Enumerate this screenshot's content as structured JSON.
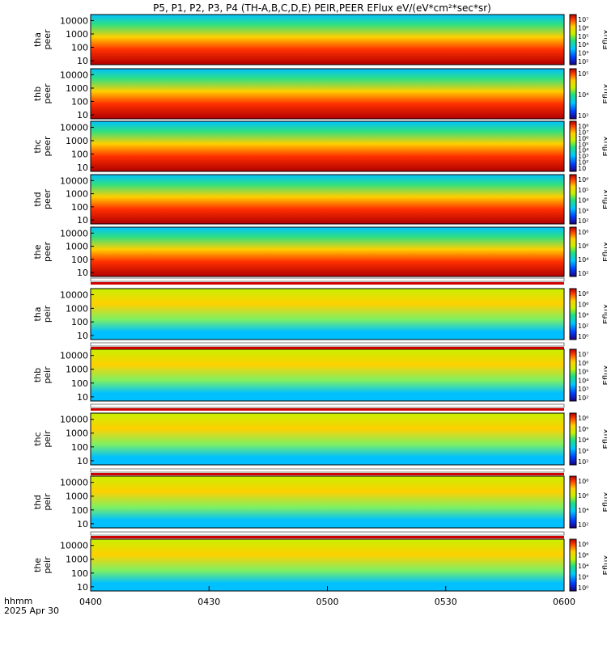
{
  "title": "P5, P1, P2, P3, P4 (TH-A,B,C,D,E) PEIR,PEER EFlux eV/(eV*cm²*sec*sr)",
  "colorbar_label": "Eflux",
  "time_axis": {
    "label_line1": "hhmm",
    "label_line2": "2025 Apr 30",
    "ticks": [
      "0400",
      "0430",
      "0500",
      "0530",
      "0600"
    ]
  },
  "chart_data": {
    "type": "heatmap",
    "x_range": [
      "0400",
      "0600"
    ],
    "panels": [
      {
        "name": "tha peer",
        "y_ticks": [
          "10000",
          "1000",
          "100",
          "10"
        ],
        "cbar_ticks": [
          "10⁷",
          "10⁶",
          "10⁵",
          "10⁴",
          "10³",
          "10²"
        ]
      },
      {
        "name": "thb peer",
        "y_ticks": [
          "10000",
          "1000",
          "100",
          "10"
        ],
        "cbar_ticks": [
          "10⁵",
          "10⁴",
          "10²"
        ]
      },
      {
        "name": "thc peer",
        "y_ticks": [
          "10000",
          "1000",
          "100",
          "10"
        ],
        "cbar_ticks": [
          "10⁸",
          "10⁷",
          "10⁶",
          "10⁵",
          "10⁴",
          "10³",
          "10²",
          "10"
        ]
      },
      {
        "name": "thd peer",
        "y_ticks": [
          "10000",
          "1000",
          "100",
          "10"
        ],
        "cbar_ticks": [
          "10⁶",
          "10⁵",
          "10⁴",
          "10³",
          "10²"
        ]
      },
      {
        "name": "the peer",
        "y_ticks": [
          "10000",
          "1000",
          "100",
          "10"
        ],
        "cbar_ticks": [
          "10⁸",
          "10⁶",
          "10⁴",
          "10²"
        ]
      },
      {
        "name": "tha peir",
        "y_ticks": [
          "10000",
          "1000",
          "100",
          "10"
        ],
        "cbar_ticks": [
          "10⁸",
          "10⁶",
          "10⁴",
          "10²",
          "10⁰"
        ]
      },
      {
        "name": "thb peir",
        "y_ticks": [
          "10000",
          "1000",
          "100",
          "10"
        ],
        "cbar_ticks": [
          "10⁷",
          "10⁶",
          "10⁵",
          "10⁴",
          "10³",
          "10²"
        ]
      },
      {
        "name": "thc peir",
        "y_ticks": [
          "10000",
          "1000",
          "100",
          "10"
        ],
        "cbar_ticks": [
          "10⁶",
          "10⁵",
          "10⁴",
          "10³",
          "10²"
        ]
      },
      {
        "name": "thd peir",
        "y_ticks": [
          "10000",
          "1000",
          "100",
          "10"
        ],
        "cbar_ticks": [
          "10⁸",
          "10⁶",
          "10⁴",
          "10²"
        ]
      },
      {
        "name": "the peir",
        "y_ticks": [
          "10000",
          "1000",
          "100",
          "10"
        ],
        "cbar_ticks": [
          "10⁸",
          "10⁶",
          "10⁴",
          "10²",
          "10⁰"
        ]
      }
    ]
  }
}
